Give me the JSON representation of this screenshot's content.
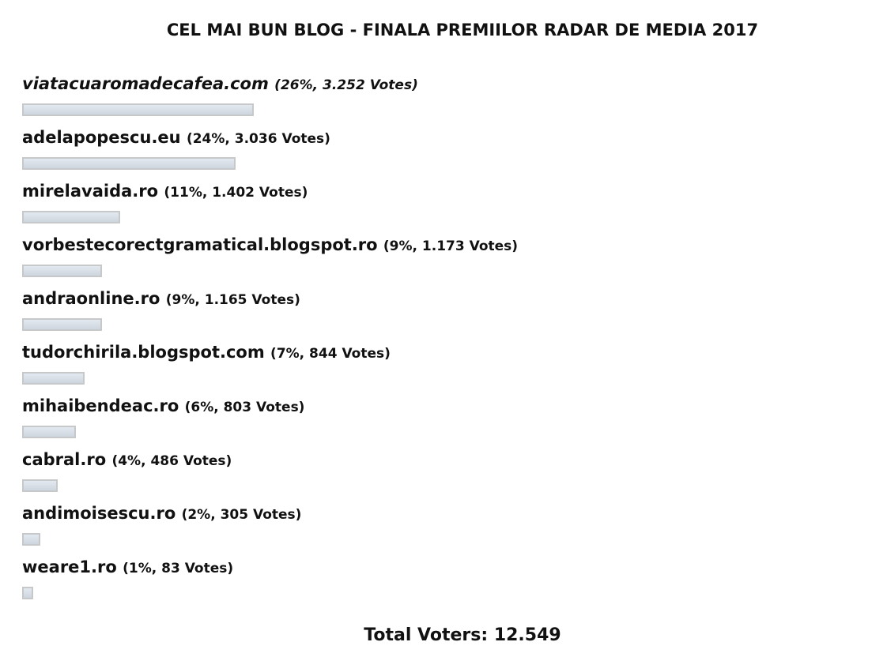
{
  "poll": {
    "title": "CEL MAI BUN BLOG - FINALA PREMIILOR RADAR DE MEDIA 2017",
    "bar_color": "#d5dce5",
    "options": [
      {
        "label": "viatacuaromadecafea.com",
        "meta": "(26%, 3.252 Votes)",
        "percent": 26,
        "italic": true
      },
      {
        "label": "adelapopescu.eu",
        "meta": "(24%, 3.036 Votes)",
        "percent": 24
      },
      {
        "label": "mirelavaida.ro",
        "meta": "(11%, 1.402 Votes)",
        "percent": 11
      },
      {
        "label": "vorbestecorectgramatical.blogspot.ro",
        "meta": "(9%, 1.173 Votes)",
        "percent": 9
      },
      {
        "label": "andraonline.ro",
        "meta": "(9%, 1.165 Votes)",
        "percent": 9
      },
      {
        "label": "tudorchirila.blogspot.com",
        "meta": "(7%, 844 Votes)",
        "percent": 7
      },
      {
        "label": "mihaibendeac.ro",
        "meta": "(6%, 803 Votes)",
        "percent": 6
      },
      {
        "label": "cabral.ro",
        "meta": "(4%, 486 Votes)",
        "percent": 4
      },
      {
        "label": "andimoisescu.ro",
        "meta": "(2%, 305 Votes)",
        "percent": 2
      },
      {
        "label": "weare1.ro",
        "meta": "(1%, 83 Votes)",
        "percent": 1
      }
    ],
    "total": "Total Voters: 12.549"
  }
}
